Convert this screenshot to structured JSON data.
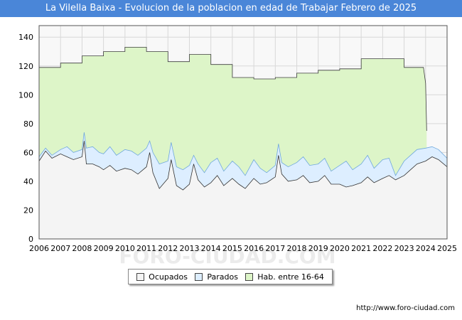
{
  "title": "La Vilella Baixa - Evolucion de la poblacion en edad de Trabajar Febrero de 2025",
  "source_url": "http://www.foro-ciudad.com",
  "watermark": "FORO-CIUDAD.COM",
  "colors": {
    "title_bg": "#4a86d8",
    "hab_fill": "#ddf5c8",
    "hab_line": "#3c3c3c",
    "parados_fill": "#ddeeff",
    "parados_line": "#6fa8dc",
    "ocupados_fill": "#f4f4f4",
    "ocupados_line": "#333333",
    "grid": "#d8d8d8",
    "plot_border": "#555555"
  },
  "chart_data": {
    "type": "area",
    "xlim": [
      2006,
      2025
    ],
    "ylim": [
      0,
      148
    ],
    "yticks": [
      0,
      20,
      40,
      60,
      80,
      100,
      120,
      140
    ],
    "xticks": [
      2006,
      2007,
      2008,
      2009,
      2010,
      2011,
      2012,
      2013,
      2014,
      2015,
      2016,
      2017,
      2018,
      2019,
      2020,
      2021,
      2022,
      2023,
      2024,
      2025
    ],
    "legend": [
      "Ocupados",
      "Parados",
      "Hab. entre 16-64"
    ],
    "legend_position": "bottom",
    "series": [
      {
        "name": "Hab. entre 16-64",
        "x": [
          2006,
          2007,
          2007,
          2008,
          2008,
          2009,
          2009,
          2010,
          2010,
          2011,
          2011,
          2012,
          2012,
          2013,
          2013,
          2014,
          2014,
          2015,
          2015,
          2016,
          2016,
          2017,
          2017,
          2018,
          2018,
          2019,
          2019,
          2020,
          2020,
          2021,
          2021,
          2022,
          2022,
          2023,
          2023,
          2023.9,
          2024,
          2024.05
        ],
        "values": [
          119,
          119,
          122,
          122,
          127,
          127,
          130,
          130,
          133,
          133,
          130,
          130,
          123,
          123,
          128,
          128,
          121,
          121,
          112,
          112,
          111,
          111,
          112,
          112,
          115,
          115,
          117,
          117,
          118,
          118,
          125,
          125,
          125,
          125,
          119,
          119,
          108,
          75
        ]
      },
      {
        "name": "Parados",
        "x": [
          2006,
          2006.3,
          2006.6,
          2007,
          2007.3,
          2007.6,
          2008,
          2008.1,
          2008.2,
          2008.5,
          2008.8,
          2009,
          2009.3,
          2009.6,
          2010,
          2010.3,
          2010.6,
          2011,
          2011.15,
          2011.3,
          2011.6,
          2012,
          2012.15,
          2012.4,
          2012.7,
          2013,
          2013.2,
          2013.4,
          2013.7,
          2014,
          2014.3,
          2014.6,
          2015,
          2015.3,
          2015.6,
          2016,
          2016.3,
          2016.6,
          2017,
          2017.15,
          2017.3,
          2017.6,
          2018,
          2018.3,
          2018.6,
          2019,
          2019.3,
          2019.6,
          2020,
          2020.3,
          2020.6,
          2021,
          2021.3,
          2021.6,
          2022,
          2022.3,
          2022.6,
          2023,
          2023.3,
          2023.6,
          2024,
          2024.3,
          2024.6,
          2025
        ],
        "values": [
          57,
          63,
          58,
          62,
          64,
          60,
          62,
          74,
          63,
          64,
          60,
          59,
          64,
          58,
          62,
          61,
          58,
          63,
          68,
          60,
          52,
          54,
          67,
          50,
          48,
          51,
          58,
          52,
          46,
          53,
          56,
          47,
          54,
          50,
          44,
          55,
          49,
          46,
          51,
          66,
          53,
          50,
          53,
          57,
          51,
          52,
          56,
          47,
          51,
          54,
          48,
          52,
          58,
          49,
          55,
          56,
          44,
          54,
          58,
          62,
          63,
          64,
          62,
          56
        ]
      },
      {
        "name": "Ocupados",
        "x": [
          2006,
          2006.3,
          2006.6,
          2007,
          2007.3,
          2007.6,
          2008,
          2008.1,
          2008.2,
          2008.5,
          2008.8,
          2009,
          2009.3,
          2009.6,
          2010,
          2010.3,
          2010.6,
          2011,
          2011.15,
          2011.3,
          2011.6,
          2012,
          2012.15,
          2012.4,
          2012.7,
          2013,
          2013.2,
          2013.4,
          2013.7,
          2014,
          2014.3,
          2014.6,
          2015,
          2015.3,
          2015.6,
          2016,
          2016.3,
          2016.6,
          2017,
          2017.15,
          2017.3,
          2017.6,
          2018,
          2018.3,
          2018.6,
          2019,
          2019.3,
          2019.6,
          2020,
          2020.3,
          2020.6,
          2021,
          2021.3,
          2021.6,
          2022,
          2022.3,
          2022.6,
          2023,
          2023.3,
          2023.6,
          2024,
          2024.3,
          2024.6,
          2025
        ],
        "values": [
          54,
          61,
          56,
          59,
          57,
          55,
          57,
          68,
          52,
          52,
          50,
          48,
          51,
          47,
          49,
          48,
          45,
          50,
          60,
          46,
          35,
          42,
          55,
          37,
          34,
          38,
          52,
          41,
          36,
          39,
          44,
          37,
          42,
          38,
          35,
          42,
          38,
          39,
          43,
          58,
          45,
          40,
          41,
          44,
          39,
          40,
          44,
          38,
          38,
          36,
          37,
          39,
          43,
          39,
          42,
          44,
          41,
          44,
          48,
          52,
          54,
          57,
          55,
          50
        ]
      }
    ]
  }
}
